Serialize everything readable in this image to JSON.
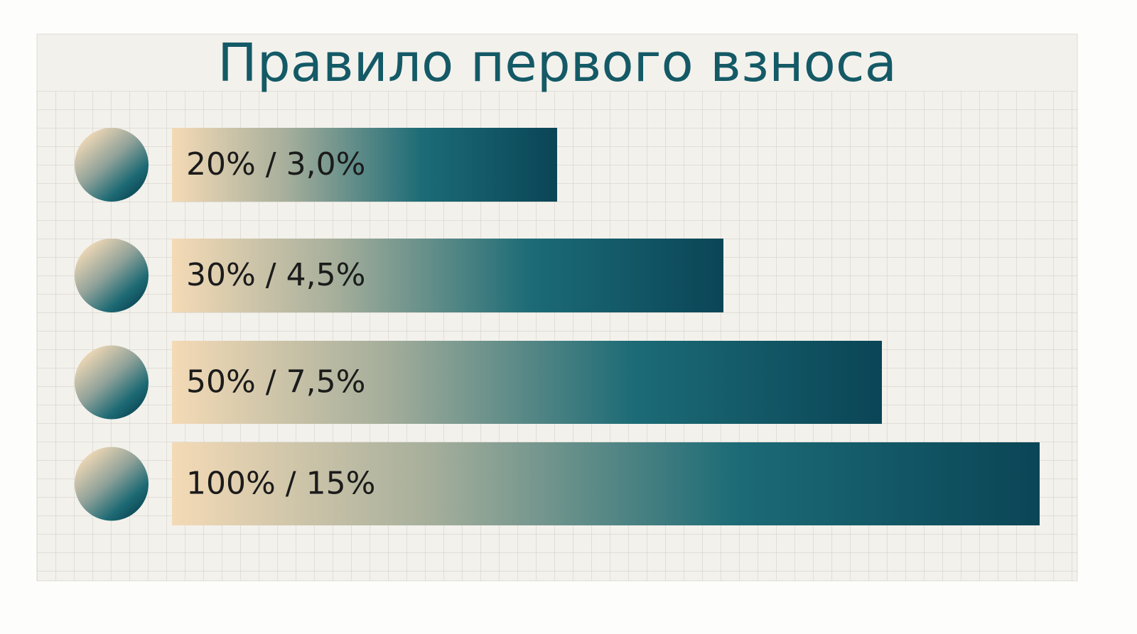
{
  "title": "Правило первого взноса",
  "items": [
    {
      "label": "20% / 3,0%"
    },
    {
      "label": "30% / 4,5%"
    },
    {
      "label": "50% / 7,5%"
    },
    {
      "label": "100% / 15%"
    }
  ]
}
